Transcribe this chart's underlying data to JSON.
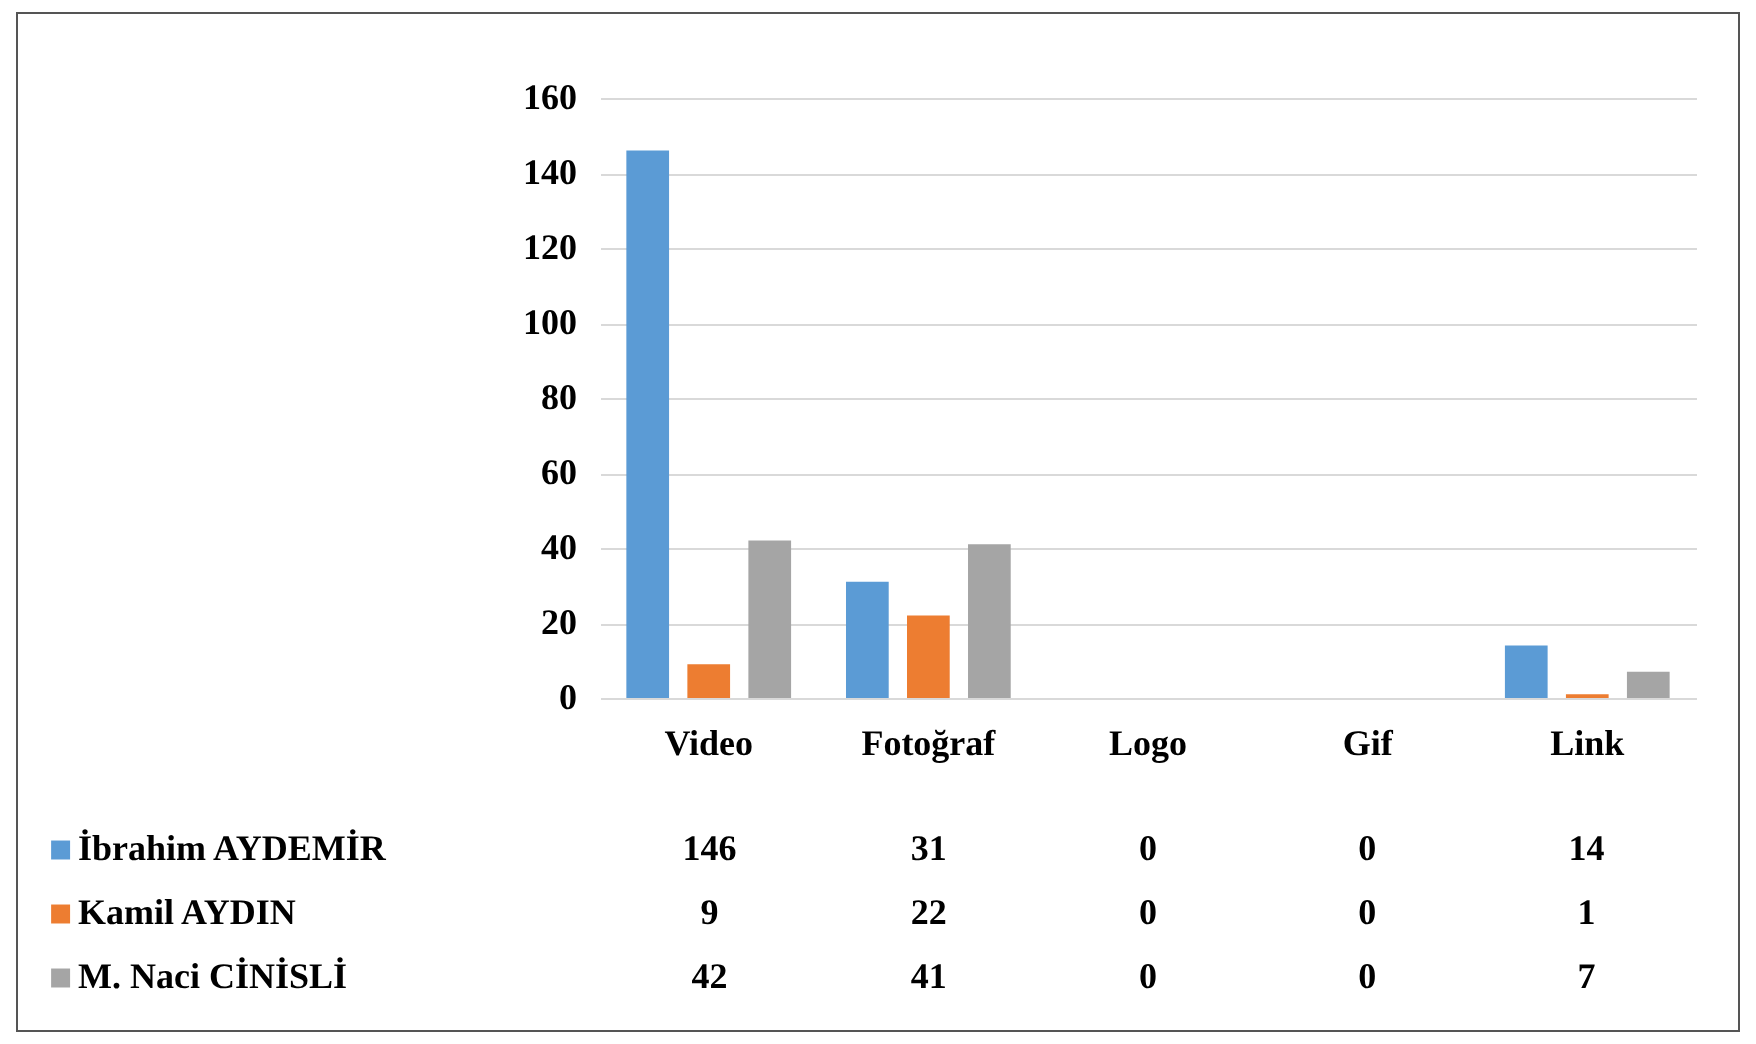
{
  "chart_data": {
    "type": "bar",
    "categories": [
      "Video",
      "Fotoğraf",
      "Logo",
      "Gif",
      "Link"
    ],
    "series": [
      {
        "name": "İbrahim AYDEMİR",
        "color": "#5b9bd5",
        "values": [
          146,
          31,
          0,
          0,
          14
        ]
      },
      {
        "name": "Kamil AYDIN",
        "color": "#ed7d31",
        "values": [
          9,
          22,
          0,
          0,
          1
        ]
      },
      {
        "name": "M. Naci CİNİSLİ",
        "color": "#a5a5a5",
        "values": [
          42,
          41,
          0,
          0,
          7
        ]
      }
    ],
    "ylim": [
      0,
      160
    ],
    "yticks": [
      0,
      20,
      40,
      60,
      80,
      100,
      120,
      140,
      160
    ],
    "grid": "y",
    "legend": "bottom left",
    "data_labels": true
  }
}
